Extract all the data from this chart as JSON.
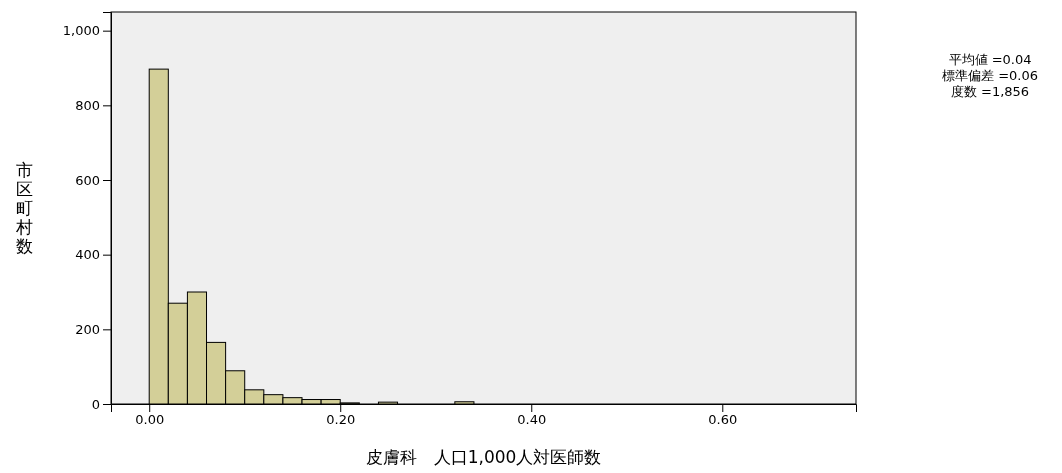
{
  "chart_data": {
    "type": "histogram",
    "bins": [
      0,
      0.02,
      0.04,
      0.06,
      0.08,
      0.1,
      0.12,
      0.14,
      0.16,
      0.18,
      0.2,
      0.22,
      0.24,
      0.26,
      0.28,
      0.3,
      0.32,
      0.34,
      0.36,
      0.38,
      0.4,
      0.42,
      0.44,
      0.46,
      0.48,
      0.5,
      0.52,
      0.54,
      0.56,
      0.58,
      0.6,
      0.62,
      0.64,
      0.66,
      0.68,
      0.7
    ],
    "values": [
      897,
      270,
      300,
      165,
      89,
      38,
      25,
      17,
      12,
      12,
      3,
      0,
      5,
      0,
      0,
      0,
      6,
      0,
      0,
      0,
      0,
      0,
      0,
      0,
      0,
      0,
      0,
      0,
      0,
      0,
      0,
      0,
      0,
      0,
      0
    ],
    "color": "#d3cf98",
    "xlim": [
      -0.04,
      0.74
    ],
    "xticks": [
      {
        "value": 0,
        "label": "0.00"
      },
      {
        "value": 0.2,
        "label": "0.20"
      },
      {
        "value": 0.4,
        "label": "0.40"
      },
      {
        "value": 0.6,
        "label": "0.60"
      }
    ],
    "ylim": [
      0,
      1050
    ],
    "yticks": [
      0,
      200,
      400,
      600,
      800,
      {
        "value": 1000,
        "label": "1,000"
      }
    ],
    "xlabel": "皮膚科　人口1,000人対医師数",
    "ylabel": "市区町村数",
    "annotations": [
      "平均値 =0.04",
      "標準偏差 =0.06",
      "度数 =1,856"
    ],
    "grid": false
  }
}
